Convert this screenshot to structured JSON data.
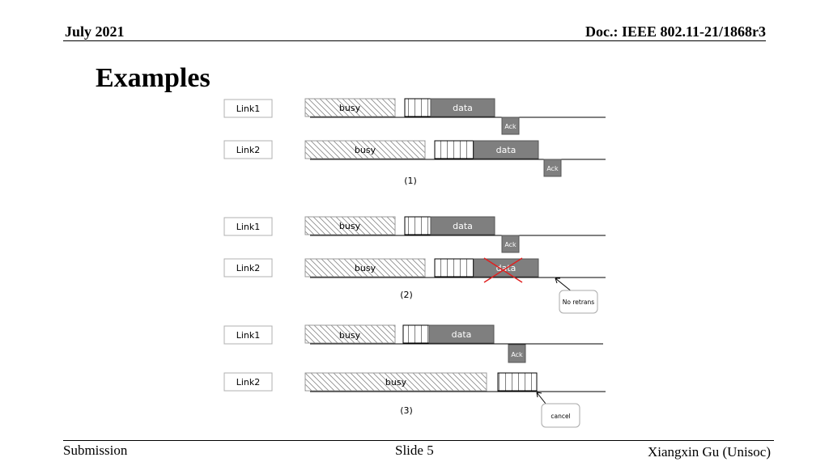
{
  "header": {
    "date": "July 2021",
    "doc": "Doc.: IEEE 802.11-21/1868r3"
  },
  "title": "Examples",
  "footer": {
    "left": "Submission",
    "center": "Slide 5",
    "right": "Xiangxin Gu (Unisoc)"
  },
  "diagram": {
    "link1_label": "Link1",
    "link2_label": "Link2",
    "busy_label": "busy",
    "data_label": "data",
    "ack_label": "Ack",
    "example1_caption": "(1)",
    "example2_caption": "(2)",
    "example3_caption": "(3)",
    "no_retrans_label": "No retrans",
    "cancel_label": "cancel"
  },
  "colors": {
    "data_fill": "#7f7f7f",
    "cross": "#e02020"
  }
}
